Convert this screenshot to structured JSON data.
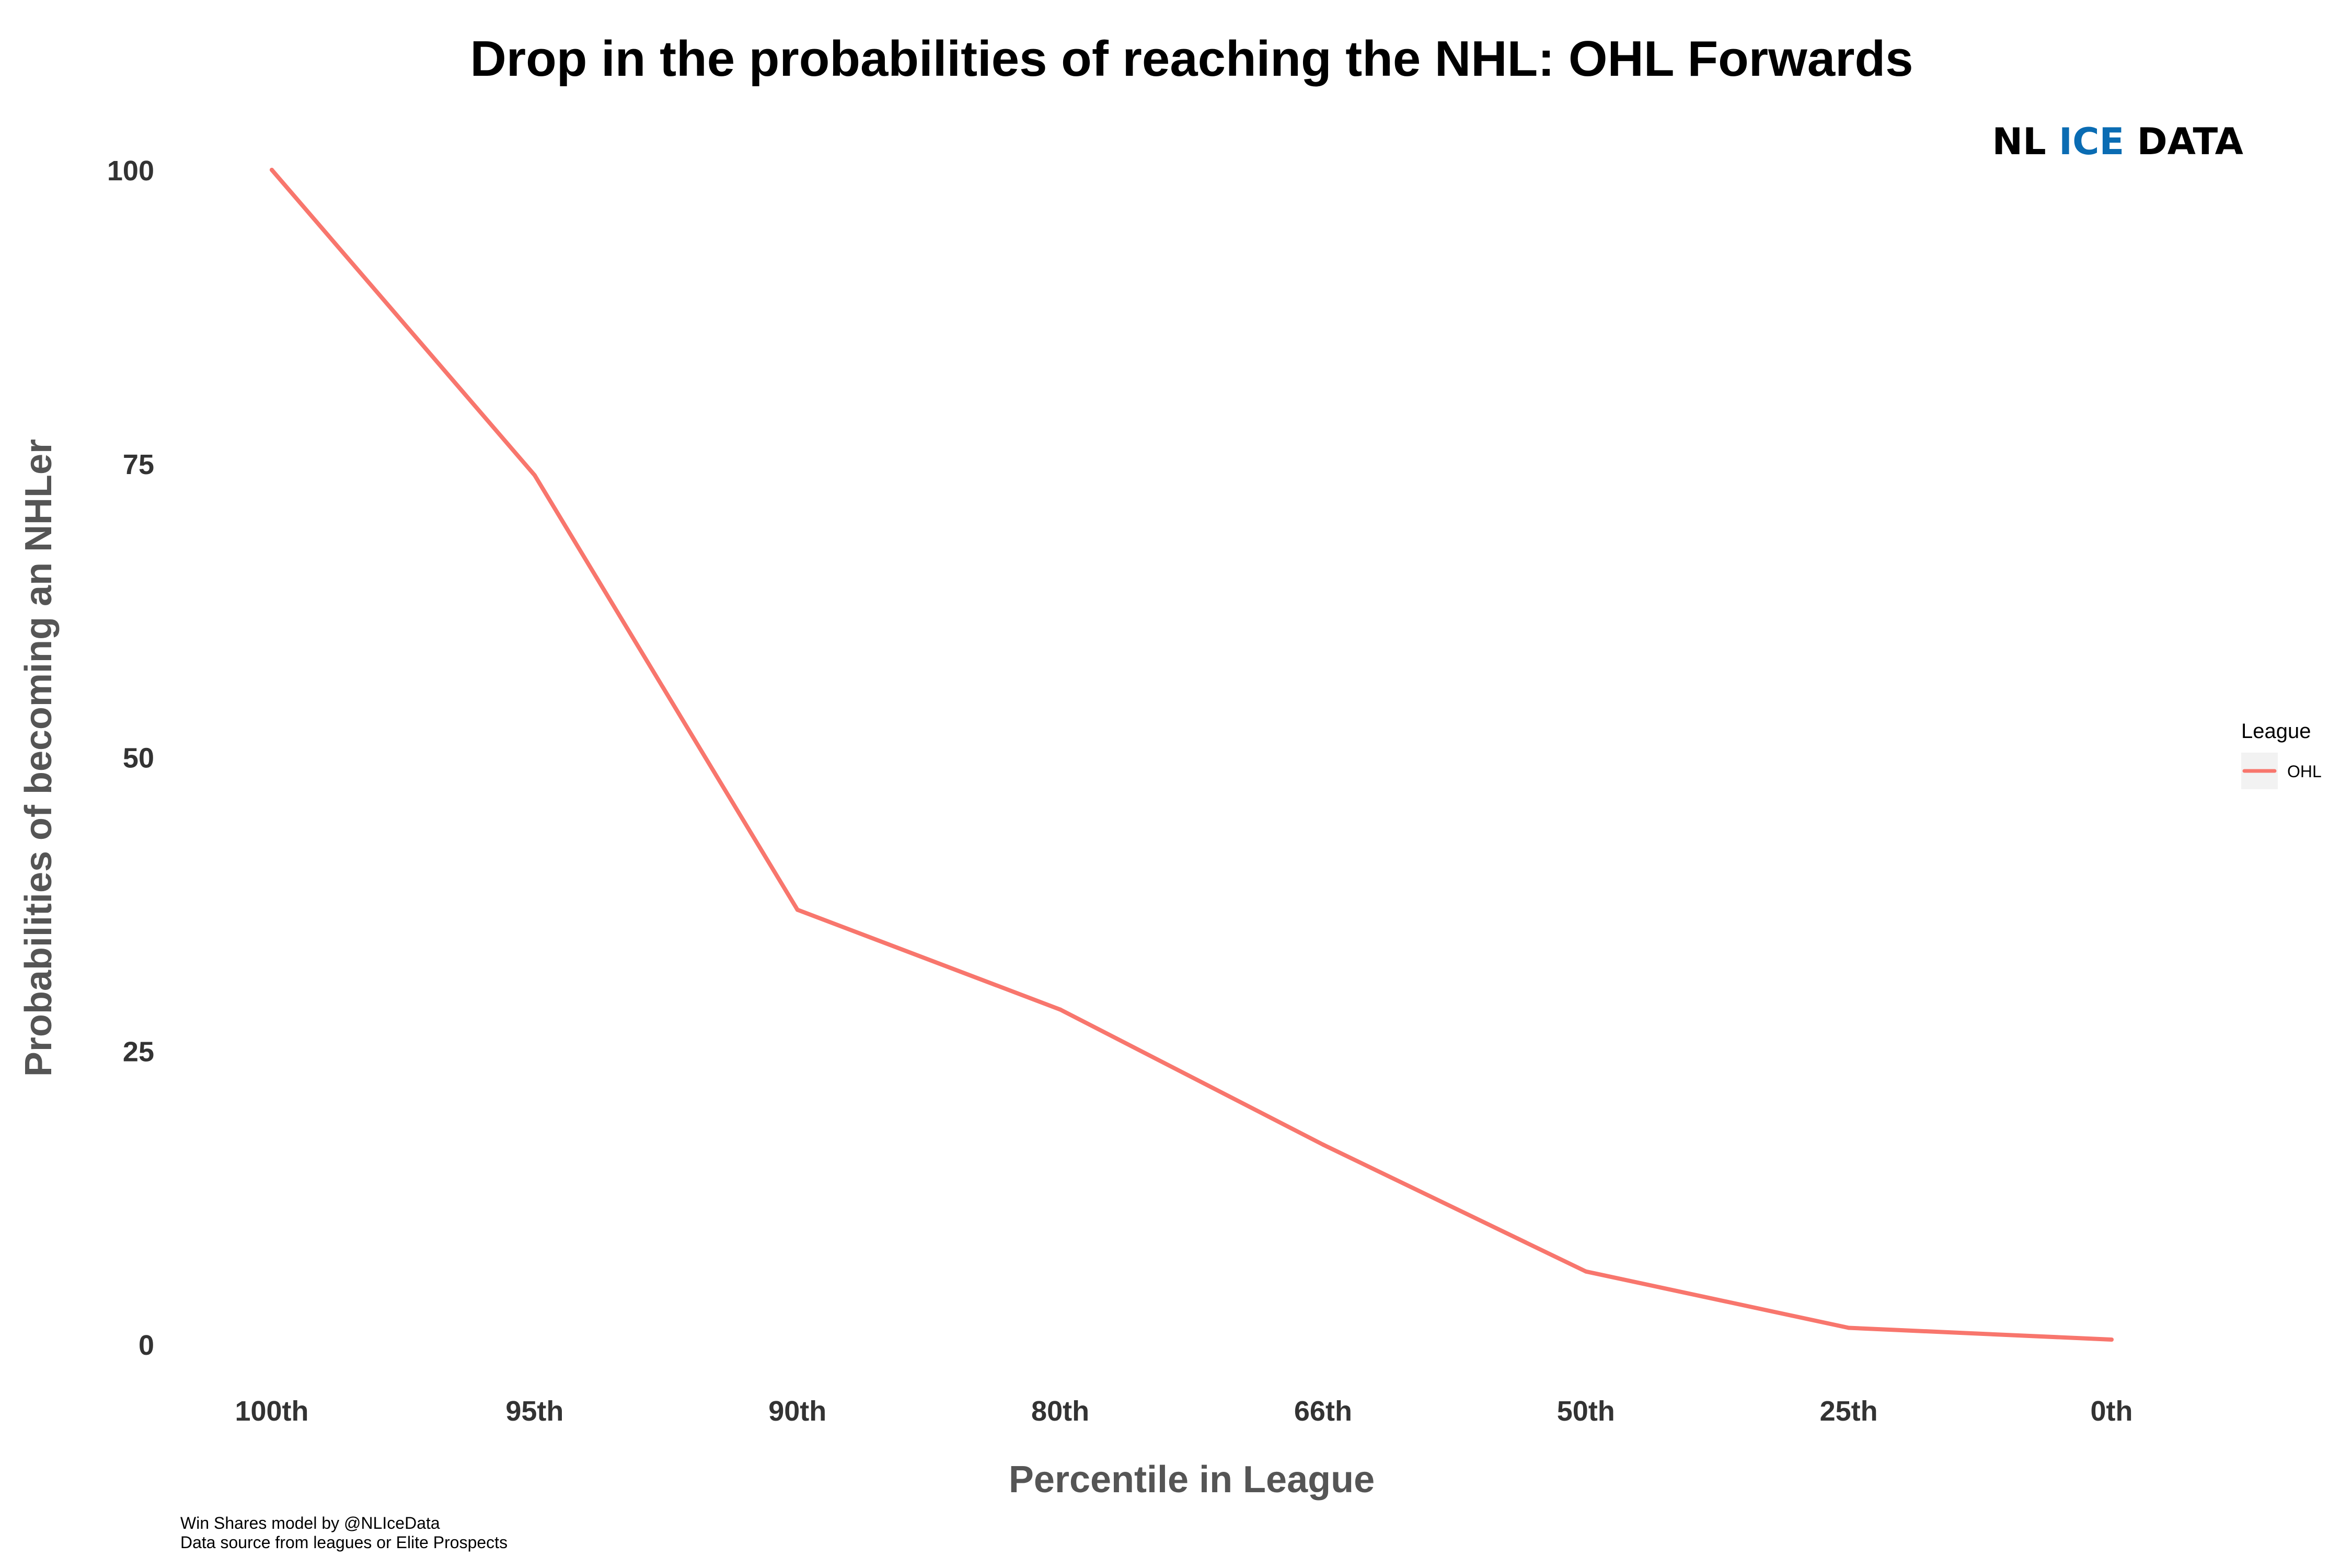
{
  "chart_data": {
    "type": "line",
    "title": "Drop in the probabilities of reaching the NHL: OHL Forwards",
    "xlabel": "Percentile in League",
    "ylabel": "Probabilities of becoming an NHLer",
    "categories": [
      "100th",
      "95th",
      "90th",
      "80th",
      "66th",
      "50th",
      "25th",
      "0th"
    ],
    "series": [
      {
        "name": "OHL",
        "values": [
          100,
          74,
          37,
          28.5,
          17,
          6.2,
          1.4,
          0.4
        ],
        "color": "#F8766D"
      }
    ],
    "ylim": [
      0,
      100
    ],
    "yticks": [
      "0",
      "25",
      "50",
      "75",
      "100"
    ],
    "grid": false,
    "legend": {
      "title": "League",
      "position": "right"
    }
  },
  "logo": {
    "part1": "NL ",
    "part2": "ICE",
    "part3": " DATA",
    "accent_color": "#0A6CB3"
  },
  "caption": {
    "line1": "Win Shares model by @NLIceData",
    "line2": "Data source from leagues or Elite Prospects"
  }
}
